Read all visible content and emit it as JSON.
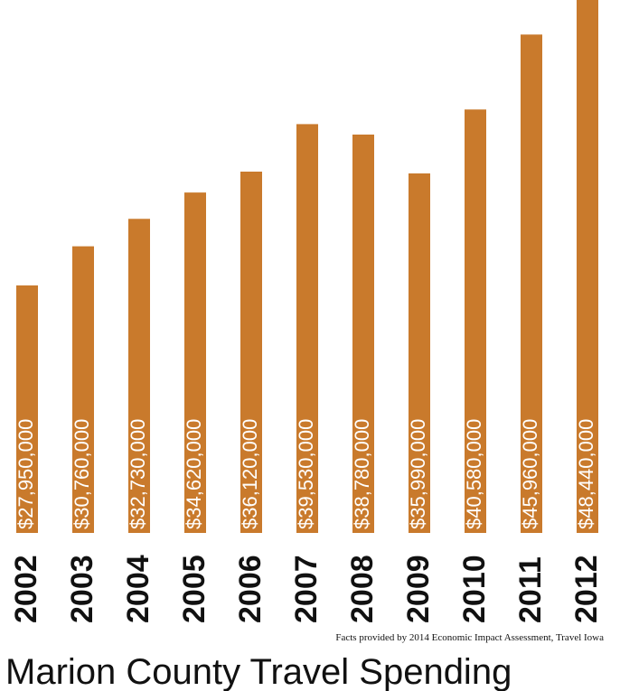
{
  "chart_data": {
    "type": "bar",
    "title": "Marion County Travel Spending",
    "source": "Facts provided by 2014 Economic Impact Assessment, Travel Iowa",
    "categories": [
      "2002",
      "2003",
      "2004",
      "2005",
      "2006",
      "2007",
      "2008",
      "2009",
      "2010",
      "2011",
      "2012"
    ],
    "values": [
      27950000,
      30760000,
      32730000,
      34620000,
      36120000,
      39530000,
      38780000,
      35990000,
      40580000,
      45960000,
      48440000
    ],
    "value_labels": [
      "$27,950,000",
      "$30,760,000",
      "$32,730,000",
      "$34,620,000",
      "$36,120,000",
      "$39,530,000",
      "$38,780,000",
      "$35,990,000",
      "$40,580,000",
      "$45,960,000",
      "$48,440,000"
    ],
    "color": "#c97a2c"
  }
}
